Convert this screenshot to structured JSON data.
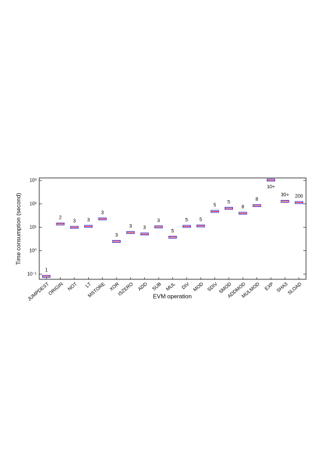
{
  "chart_data": {
    "type": "box",
    "x_label": "EVM operation",
    "y_label": "Time consumption (second)",
    "categories": [
      "JUMPDEST",
      "ORIGIN",
      "NOT",
      "LT",
      "MSTORE",
      "XOR",
      "ISZERO",
      "ADD",
      "SUB",
      "MUL",
      "DIV",
      "MOD",
      "SDIV",
      "SMOD",
      "ADDMOD",
      "MULMOD",
      "EXP",
      "SHA3",
      "SLOAD"
    ],
    "values": [
      0.08,
      14,
      10,
      11,
      23,
      2.5,
      6,
      5.2,
      10.5,
      3.8,
      11,
      11.5,
      48,
      65,
      40,
      85,
      1050,
      130,
      115
    ],
    "annotations": [
      "1",
      "2",
      "3",
      "3",
      "3",
      "3",
      "3",
      "3",
      "3",
      "5",
      "5",
      "5",
      "5",
      "5",
      "8",
      "8",
      "10+",
      "30+",
      "200"
    ],
    "box_color": "#3a2fc8",
    "median_color": "#e8202a",
    "log_scale": true,
    "ylim": [
      0.06,
      1300
    ],
    "yticks": [
      {
        "value": 0.1,
        "label": "10⁻¹"
      },
      {
        "value": 1,
        "label": "10⁰"
      },
      {
        "value": 10,
        "label": "10¹"
      },
      {
        "value": 100,
        "label": "10²"
      },
      {
        "value": 1000,
        "label": "10³"
      }
    ]
  }
}
